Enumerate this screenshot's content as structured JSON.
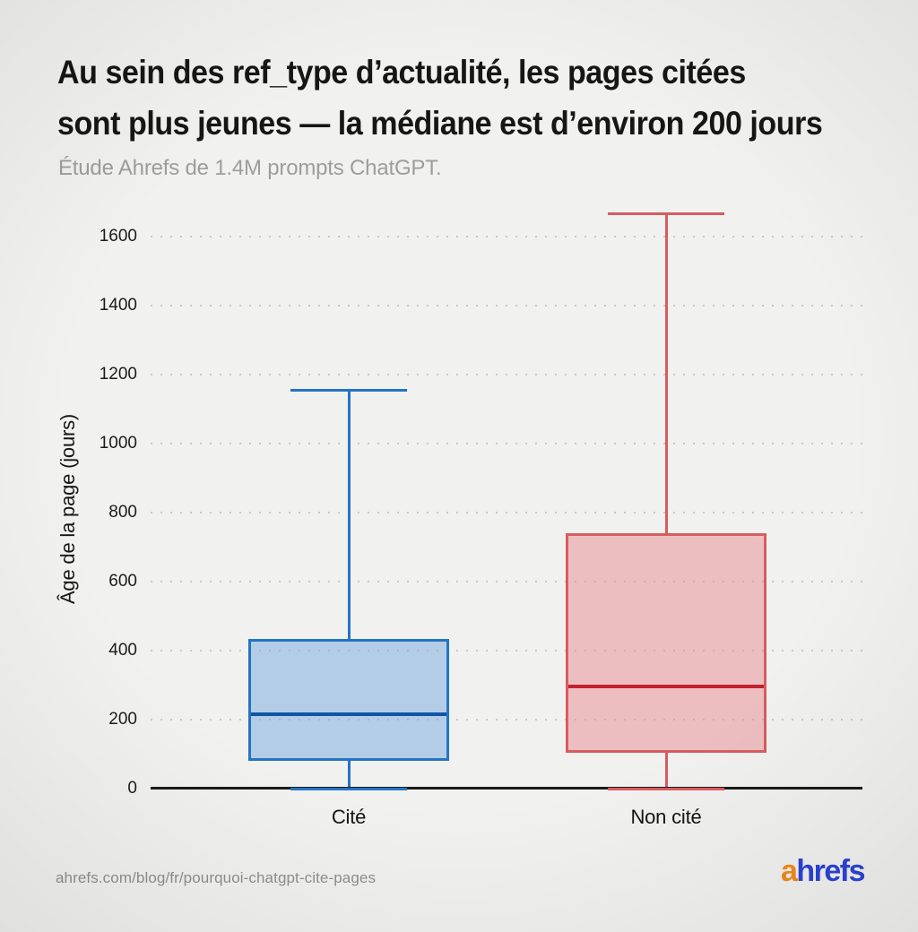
{
  "header": {
    "title_line1": "Au sein des ref_type d’actualité, les pages citées",
    "title_line2": "sont plus jeunes — la médiane est d’environ 200 jours",
    "subtitle": "Étude Ahrefs de 1.4M prompts ChatGPT."
  },
  "footer": {
    "url": "ahrefs.com/blog/fr/pourquoi-chatgpt-cite-pages",
    "logo_prefix": "a",
    "logo_rest": "hrefs",
    "logo_orange": "#f28a1d",
    "logo_blue": "#2b43d6"
  },
  "chart_data": {
    "type": "boxplot",
    "title": "Au sein des ref_type d’actualité, les pages citées sont plus jeunes — la médiane est d’environ 200 jours",
    "subtitle": "Étude Ahrefs de 1.4M prompts ChatGPT.",
    "ylabel": "Âge de la page (jours)",
    "xlabel": "",
    "ylim": [
      0,
      1790
    ],
    "yticks": [
      0,
      200,
      400,
      600,
      800,
      1000,
      1200,
      1400,
      1600
    ],
    "grid": "horizontal-dotted",
    "legend": "none",
    "categories": [
      "Cité",
      "Non cité"
    ],
    "series": [
      {
        "name": "Cité",
        "min": 0,
        "q1": 80,
        "median": 215,
        "q3": 435,
        "max": 1155,
        "stroke": "#2474c4",
        "fill": "rgba(130,175,222,0.55)",
        "median_color": "#0f55a8"
      },
      {
        "name": "Non cité",
        "min": 0,
        "q1": 105,
        "median": 295,
        "q3": 740,
        "max": 1665,
        "stroke": "#d75c5f",
        "fill": "rgba(233,148,152,0.55)",
        "median_color": "#c2222f"
      }
    ]
  }
}
